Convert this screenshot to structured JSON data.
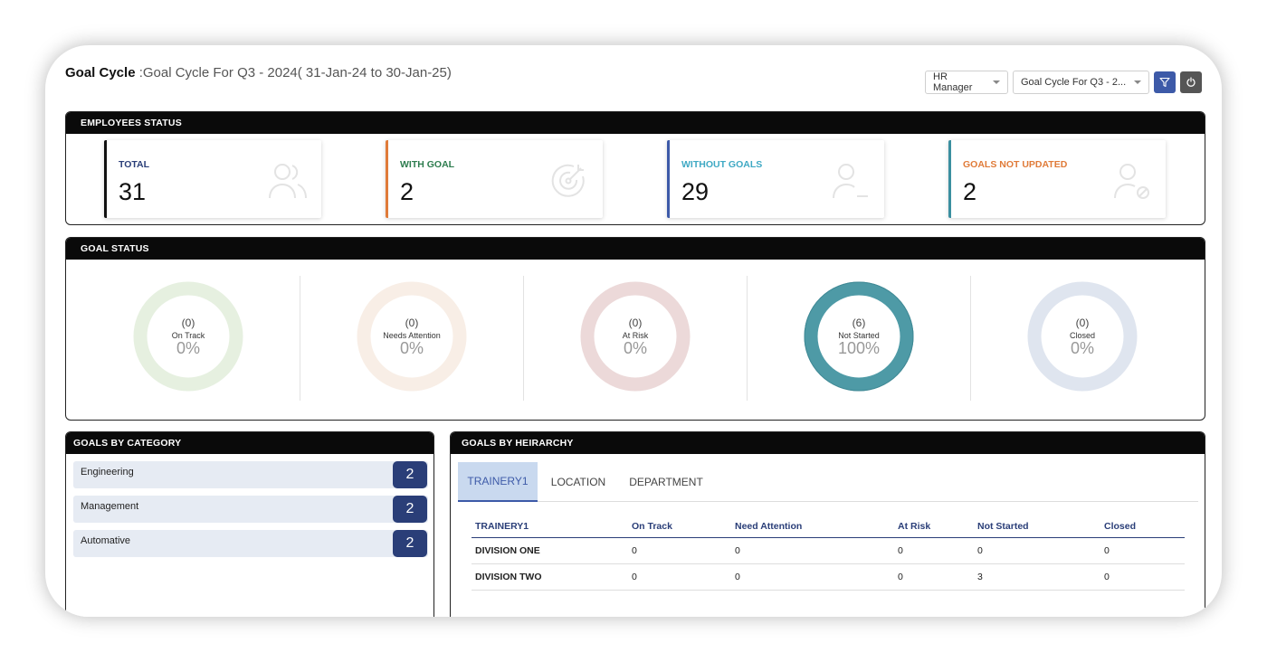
{
  "header": {
    "title_label": "Goal Cycle ",
    "title_value": ":Goal Cycle For Q3 - 2024( 31-Jan-24 to 30-Jan-25)"
  },
  "controls": {
    "role_select": "HR Manager",
    "cycle_select": "Goal Cycle For Q3 - 2..."
  },
  "employees_status": {
    "title": "EMPLOYEES STATUS",
    "cards": [
      {
        "label": "TOTAL",
        "value": "31",
        "color": "#2a3e78",
        "icon": "users-icon"
      },
      {
        "label": "WITH GOAL",
        "value": "2",
        "color": "#2e7d4f",
        "icon": "target-icon"
      },
      {
        "label": "WITHOUT GOALS",
        "value": "29",
        "color": "#3fa9c4",
        "icon": "user-minus-icon"
      },
      {
        "label": "GOALS NOT UPDATED",
        "value": "2",
        "color": "#e07b39",
        "icon": "user-blocked-icon"
      }
    ],
    "card_border_colors": [
      "#111111",
      "#e07b39",
      "#3d5aa8",
      "#3b8fa0"
    ]
  },
  "goal_status": {
    "title": "GOAL STATUS",
    "donuts": [
      {
        "count": "(0)",
        "label": "On Track",
        "percent": "0%",
        "value": 0,
        "color": "#e6f0e0"
      },
      {
        "count": "(0)",
        "label": "Needs Attention",
        "percent": "0%",
        "value": 0,
        "color": "#f8eee6"
      },
      {
        "count": "(0)",
        "label": "At Risk",
        "percent": "0%",
        "value": 0,
        "color": "#ecd9d9"
      },
      {
        "count": "(6)",
        "label": "Not Started",
        "percent": "100%",
        "value": 1,
        "color": "#4e9aa6"
      },
      {
        "count": "(0)",
        "label": "Closed",
        "percent": "0%",
        "value": 0,
        "color": "#dfe5ef"
      }
    ]
  },
  "goals_by_category": {
    "title": "GOALS BY CATEGORY",
    "items": [
      {
        "name": "Engineering",
        "count": "2"
      },
      {
        "name": "Management",
        "count": "2"
      },
      {
        "name": "Automative",
        "count": "2"
      }
    ]
  },
  "goals_by_hierarchy": {
    "title": "GOALS BY HEIRARCHY",
    "tabs": [
      "TRAINERY1",
      "LOCATION",
      "DEPARTMENT"
    ],
    "active_tab": "TRAINERY1",
    "columns": [
      "TRAINERY1",
      "On Track",
      "Need Attention",
      "At Risk",
      "Not Started",
      "Closed"
    ],
    "rows": [
      [
        "DIVISION ONE",
        "0",
        "0",
        "0",
        "0",
        "0"
      ],
      [
        "DIVISION TWO",
        "0",
        "0",
        "0",
        "3",
        "0"
      ]
    ]
  }
}
